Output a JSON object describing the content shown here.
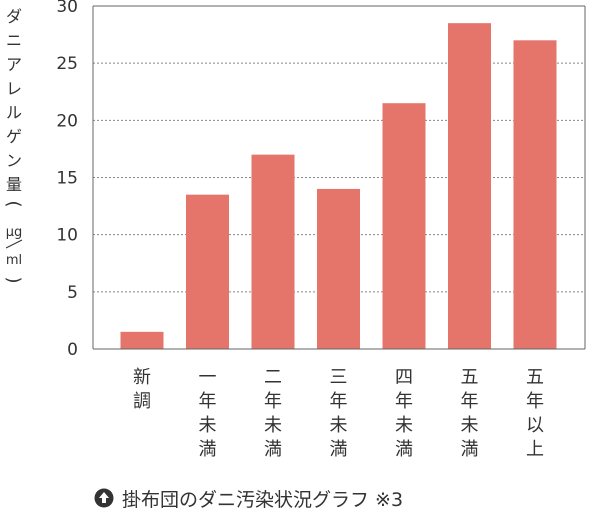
{
  "chart_data": {
    "type": "bar",
    "categories": [
      "新調",
      "一年未満",
      "二年未満",
      "三年未満",
      "四年未満",
      "五年未満",
      "五年以上"
    ],
    "values": [
      1.5,
      13.5,
      17,
      14,
      21.5,
      28.5,
      27
    ],
    "ylabel": "ダニアレルゲン量（μg/ml）",
    "ylabel_main": "ダニアレルゲン量",
    "ylabel_unit_num": "μg",
    "ylabel_unit_den": "ml",
    "ylim": [
      0,
      30
    ],
    "yticks": [
      0,
      5,
      10,
      15,
      20,
      25,
      30
    ],
    "grid": true,
    "bar_color": "#e5756b"
  },
  "caption": {
    "icon": "arrow-up-circle-icon",
    "text": "掛布団のダニ汚染状況グラフ ※3"
  },
  "colors": {
    "bar": "#e5756b",
    "text": "#333333",
    "grid": "#888888",
    "axis": "#666666"
  }
}
